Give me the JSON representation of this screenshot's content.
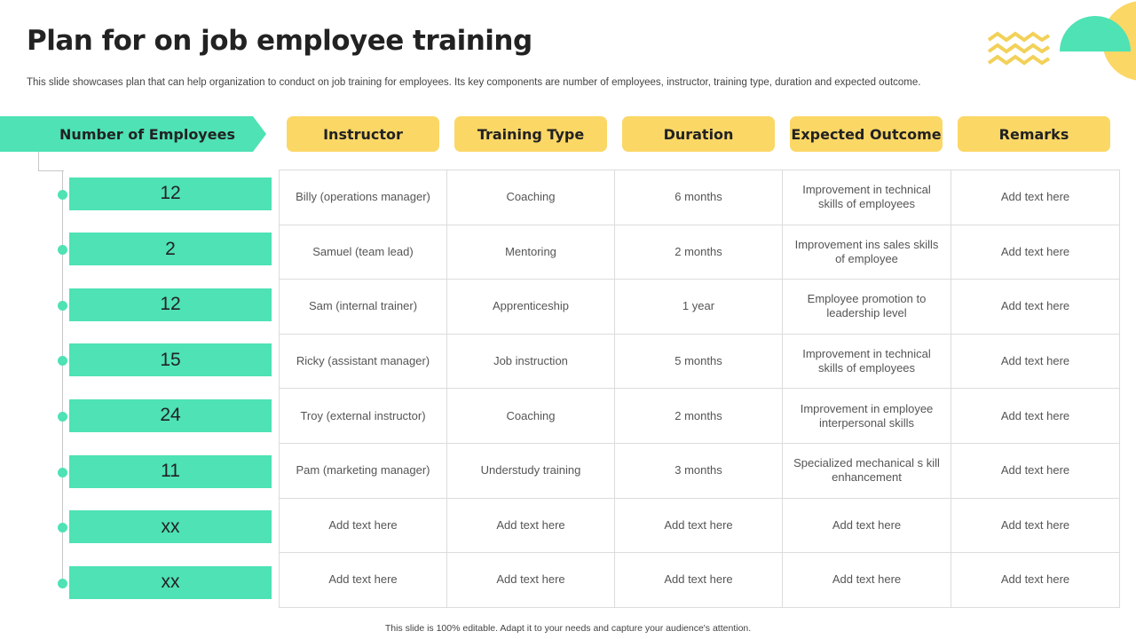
{
  "title": "Plan for on job employee training",
  "subtitle": "This slide showcases plan that can help organization to conduct on job training for employees. Its key components are number of employees, instructor, training type, duration and expected outcome.",
  "headers": {
    "employees": "Number of Employees",
    "instructor": "Instructor",
    "training_type": "Training Type",
    "duration": "Duration",
    "outcome": "Expected Outcome",
    "remarks": "Remarks"
  },
  "rows": [
    {
      "count": "12",
      "instructor": "Billy (operations  manager)",
      "training_type": "Coaching",
      "duration": "6 months",
      "outcome": "Improvement  in technical skills of employees",
      "remarks": "Add text here"
    },
    {
      "count": "2",
      "instructor": "Samuel  (team lead)",
      "training_type": "Mentoring",
      "duration": "2 months",
      "outcome": "Improvement  ins sales skills of employee",
      "remarks": "Add text here"
    },
    {
      "count": "12",
      "instructor": "Sam (internal  trainer)",
      "training_type": "Apprenticeship",
      "duration": "1 year",
      "outcome": "Employee promotion to leadership level",
      "remarks": "Add text here"
    },
    {
      "count": "15",
      "instructor": "Ricky (assistant manager)",
      "training_type": "Job instruction",
      "duration": "5 months",
      "outcome": "Improvement  in technical skills of employees",
      "remarks": "Add text here"
    },
    {
      "count": "24",
      "instructor": "Troy (external instructor)",
      "training_type": "Coaching",
      "duration": "2 months",
      "outcome": "Improvement  in employee interpersonal  skills",
      "remarks": "Add text here"
    },
    {
      "count": "11",
      "instructor": "Pam (marketing manager)",
      "training_type": "Understudy training",
      "duration": "3 months",
      "outcome": "Specialized mechanical s kill enhancement",
      "remarks": "Add text here"
    },
    {
      "count": "xx",
      "instructor": "Add text here",
      "training_type": "Add text here",
      "duration": "Add text here",
      "outcome": "Add text here",
      "remarks": "Add text here"
    },
    {
      "count": "xx",
      "instructor": "Add text here",
      "training_type": "Add text here",
      "duration": "Add text here",
      "outcome": "Add text here",
      "remarks": "Add text here"
    }
  ],
  "footer": "This slide is 100% editable.  Adapt it to your needs and capture your audience's attention.",
  "colors": {
    "accent_teal": "#4ee2b4",
    "accent_yellow": "#fbd766"
  }
}
